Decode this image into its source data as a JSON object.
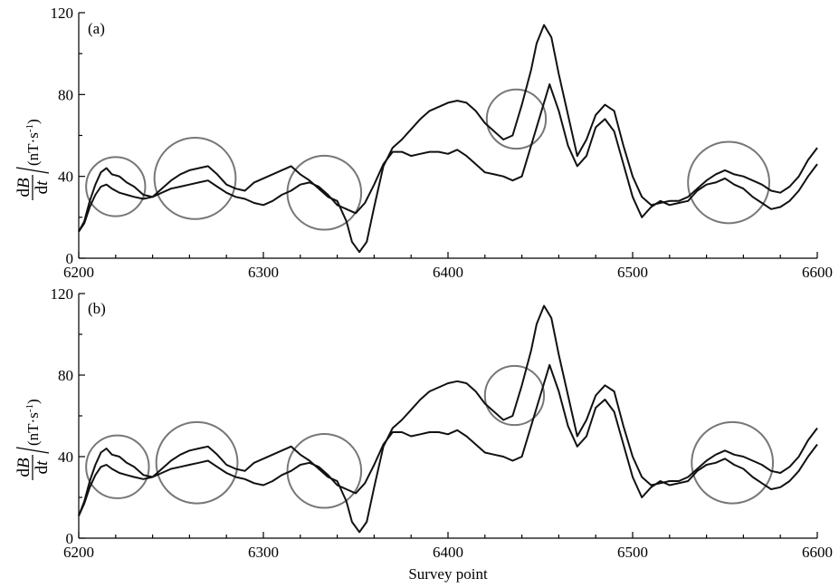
{
  "chart_data": [
    {
      "type": "line",
      "panel_label": "(a)",
      "ylabel_numerator": "dB",
      "ylabel_numerator_parts": [
        "d",
        "B"
      ],
      "ylabel_denominator": "dt",
      "ylabel_denominator_parts": [
        "d",
        "t"
      ],
      "ylabel_unit": "(nT·s-1)",
      "ylabel_unit_parts": [
        "(nT·s",
        "-1",
        ")"
      ],
      "xlabel": "",
      "xlim": [
        6200,
        6600
      ],
      "ylim": [
        0,
        120
      ],
      "xticks": [
        6200,
        6300,
        6400,
        6500,
        6600
      ],
      "xtick_labels": [
        "6200",
        "6300",
        "6400",
        "6500",
        "6600"
      ],
      "yticks": [
        0,
        40,
        80,
        120
      ],
      "ytick_labels": [
        "0",
        "40",
        "80",
        "120"
      ],
      "grid": false,
      "series": [
        {
          "x": [
            6200,
            6203,
            6206,
            6209,
            6212,
            6215,
            6218,
            6222,
            6226,
            6230,
            6235,
            6240,
            6245,
            6250,
            6255,
            6260,
            6265,
            6270,
            6275,
            6280,
            6285,
            6290,
            6295,
            6300,
            6305,
            6310,
            6315,
            6320,
            6325,
            6330,
            6335,
            6340,
            6345,
            6348,
            6352,
            6356,
            6360,
            6365,
            6370,
            6375,
            6380,
            6385,
            6390,
            6395,
            6400,
            6405,
            6410,
            6415,
            6420,
            6425,
            6430,
            6435,
            6440,
            6445,
            6448,
            6452,
            6456,
            6460,
            6465,
            6470,
            6475,
            6480,
            6485,
            6490,
            6495,
            6500,
            6505,
            6510,
            6515,
            6520,
            6525,
            6530,
            6535,
            6540,
            6545,
            6550,
            6555,
            6560,
            6565,
            6570,
            6575,
            6580,
            6585,
            6590,
            6595,
            6600
          ],
          "y": [
            13,
            18,
            28,
            36,
            42,
            44,
            41,
            40,
            37,
            35,
            31,
            30,
            34,
            38,
            41,
            43,
            44,
            45,
            41,
            36,
            34,
            33,
            37,
            39,
            41,
            43,
            45,
            41,
            38,
            34,
            30,
            28,
            18,
            8,
            3,
            8,
            25,
            45,
            54,
            58,
            63,
            68,
            72,
            74,
            76,
            77,
            76,
            72,
            66,
            62,
            58,
            60,
            75,
            92,
            105,
            114,
            108,
            90,
            70,
            50,
            58,
            70,
            75,
            72,
            55,
            40,
            30,
            26,
            27,
            28,
            28,
            30,
            34,
            38,
            41,
            43,
            41,
            40,
            38,
            36,
            33,
            32,
            35,
            40,
            48,
            54
          ]
        },
        {
          "x": [
            6200,
            6203,
            6206,
            6209,
            6212,
            6215,
            6218,
            6222,
            6226,
            6230,
            6235,
            6240,
            6245,
            6250,
            6255,
            6260,
            6265,
            6270,
            6275,
            6280,
            6285,
            6290,
            6295,
            6300,
            6305,
            6310,
            6315,
            6320,
            6325,
            6330,
            6335,
            6340,
            6345,
            6350,
            6355,
            6360,
            6365,
            6370,
            6375,
            6380,
            6385,
            6390,
            6395,
            6400,
            6405,
            6410,
            6415,
            6420,
            6425,
            6430,
            6435,
            6440,
            6445,
            6450,
            6455,
            6460,
            6465,
            6470,
            6475,
            6480,
            6485,
            6490,
            6495,
            6500,
            6505,
            6510,
            6515,
            6520,
            6525,
            6530,
            6535,
            6540,
            6545,
            6550,
            6555,
            6560,
            6565,
            6570,
            6575,
            6580,
            6585,
            6590,
            6595,
            6600
          ],
          "y": [
            13,
            17,
            25,
            31,
            35,
            36,
            34,
            32,
            31,
            30,
            29,
            30,
            32,
            34,
            35,
            36,
            37,
            38,
            35,
            32,
            30,
            29,
            27,
            26,
            28,
            31,
            33,
            36,
            37,
            35,
            31,
            26,
            24,
            22,
            27,
            36,
            46,
            52,
            52,
            50,
            51,
            52,
            52,
            51,
            53,
            50,
            46,
            42,
            41,
            40,
            38,
            40,
            55,
            70,
            85,
            72,
            55,
            45,
            50,
            64,
            68,
            62,
            46,
            30,
            20,
            25,
            28,
            26,
            27,
            28,
            33,
            36,
            37,
            39,
            36,
            34,
            30,
            27,
            24,
            25,
            28,
            33,
            40,
            46
          ]
        }
      ],
      "highlights": [
        {
          "x": 6220,
          "y": 35,
          "r_x": 16
        },
        {
          "x": 6263,
          "y": 39,
          "r_x": 22
        },
        {
          "x": 6333,
          "y": 32,
          "r_x": 20
        },
        {
          "x": 6437,
          "y": 68,
          "r_x": 16
        },
        {
          "x": 6552,
          "y": 37,
          "r_x": 22
        }
      ]
    },
    {
      "type": "line",
      "panel_label": "(b)",
      "ylabel_numerator": "dB",
      "ylabel_numerator_parts": [
        "d",
        "B"
      ],
      "ylabel_denominator": "dt",
      "ylabel_denominator_parts": [
        "d",
        "t"
      ],
      "ylabel_unit": "(nT·s-1)",
      "ylabel_unit_parts": [
        "(nT·s",
        "-1",
        ")"
      ],
      "xlabel": "Survey point",
      "xlim": [
        6200,
        6600
      ],
      "ylim": [
        0,
        120
      ],
      "xticks": [
        6200,
        6300,
        6400,
        6500,
        6600
      ],
      "xtick_labels": [
        "6200",
        "6300",
        "6400",
        "6500",
        "6600"
      ],
      "yticks": [
        0,
        40,
        80,
        120
      ],
      "ytick_labels": [
        "0",
        "40",
        "80",
        "120"
      ],
      "grid": false,
      "series": [
        {
          "x": [
            6200,
            6203,
            6206,
            6209,
            6212,
            6215,
            6218,
            6222,
            6226,
            6230,
            6235,
            6240,
            6245,
            6250,
            6255,
            6260,
            6265,
            6270,
            6275,
            6280,
            6285,
            6290,
            6295,
            6300,
            6305,
            6310,
            6315,
            6320,
            6325,
            6330,
            6335,
            6340,
            6345,
            6348,
            6352,
            6356,
            6360,
            6365,
            6370,
            6375,
            6380,
            6385,
            6390,
            6395,
            6400,
            6405,
            6410,
            6415,
            6420,
            6425,
            6430,
            6435,
            6440,
            6445,
            6448,
            6452,
            6456,
            6460,
            6465,
            6470,
            6475,
            6480,
            6485,
            6490,
            6495,
            6500,
            6505,
            6510,
            6515,
            6520,
            6525,
            6530,
            6535,
            6540,
            6545,
            6550,
            6555,
            6560,
            6565,
            6570,
            6575,
            6580,
            6585,
            6590,
            6595,
            6600
          ],
          "y": [
            11,
            18,
            28,
            36,
            42,
            44,
            41,
            40,
            37,
            35,
            31,
            30,
            34,
            38,
            41,
            43,
            44,
            45,
            41,
            36,
            34,
            33,
            37,
            39,
            41,
            43,
            45,
            41,
            38,
            34,
            30,
            28,
            18,
            8,
            3,
            8,
            25,
            45,
            54,
            58,
            63,
            68,
            72,
            74,
            76,
            77,
            76,
            72,
            66,
            62,
            58,
            60,
            75,
            92,
            105,
            114,
            108,
            90,
            70,
            50,
            58,
            70,
            75,
            72,
            55,
            40,
            30,
            26,
            27,
            28,
            28,
            30,
            34,
            38,
            41,
            43,
            41,
            40,
            38,
            36,
            33,
            32,
            35,
            40,
            48,
            54
          ]
        },
        {
          "x": [
            6200,
            6203,
            6206,
            6209,
            6212,
            6215,
            6218,
            6222,
            6226,
            6230,
            6235,
            6240,
            6245,
            6250,
            6255,
            6260,
            6265,
            6270,
            6275,
            6280,
            6285,
            6290,
            6295,
            6300,
            6305,
            6310,
            6315,
            6320,
            6325,
            6330,
            6335,
            6340,
            6345,
            6350,
            6355,
            6360,
            6365,
            6370,
            6375,
            6380,
            6385,
            6390,
            6395,
            6400,
            6405,
            6410,
            6415,
            6420,
            6425,
            6430,
            6435,
            6440,
            6445,
            6450,
            6455,
            6460,
            6465,
            6470,
            6475,
            6480,
            6485,
            6490,
            6495,
            6500,
            6505,
            6510,
            6515,
            6520,
            6525,
            6530,
            6535,
            6540,
            6545,
            6550,
            6555,
            6560,
            6565,
            6570,
            6575,
            6580,
            6585,
            6590,
            6595,
            6600
          ],
          "y": [
            11,
            17,
            25,
            31,
            35,
            36,
            34,
            32,
            31,
            30,
            29,
            30,
            32,
            34,
            35,
            36,
            37,
            38,
            35,
            32,
            30,
            29,
            27,
            26,
            28,
            31,
            33,
            36,
            37,
            35,
            31,
            26,
            24,
            22,
            27,
            36,
            46,
            52,
            52,
            50,
            51,
            52,
            52,
            51,
            53,
            50,
            46,
            42,
            41,
            40,
            38,
            40,
            55,
            70,
            85,
            72,
            55,
            45,
            50,
            64,
            68,
            62,
            46,
            30,
            20,
            25,
            28,
            26,
            27,
            28,
            33,
            36,
            37,
            39,
            36,
            34,
            30,
            27,
            24,
            25,
            28,
            33,
            40,
            46
          ]
        }
      ],
      "highlights": [
        {
          "x": 6221,
          "y": 35,
          "r_x": 17
        },
        {
          "x": 6264,
          "y": 37,
          "r_x": 22
        },
        {
          "x": 6333,
          "y": 33,
          "r_x": 20
        },
        {
          "x": 6436,
          "y": 70,
          "r_x": 16
        },
        {
          "x": 6554,
          "y": 37,
          "r_x": 22
        }
      ]
    }
  ]
}
